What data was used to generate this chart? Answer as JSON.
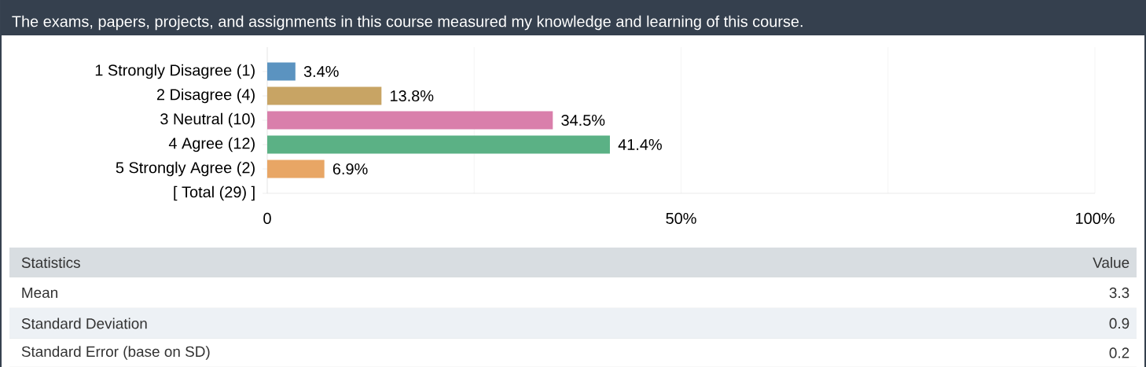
{
  "chart_data": {
    "type": "bar",
    "orientation": "horizontal",
    "title": "The exams, papers, projects, and assignments in this course measured my knowledge and learning of this course.",
    "categories": [
      "1 Strongly Disagree (1)",
      "2 Disagree (4)",
      "3 Neutral (10)",
      "4 Agree (12)",
      "5 Strongly Agree (2)",
      "[ Total (29) ]"
    ],
    "values": [
      3.4,
      13.8,
      34.5,
      41.4,
      6.9,
      null
    ],
    "colors": [
      "#5b93c0",
      "#c8a464",
      "#d97fab",
      "#5bb185",
      "#e8a665",
      null
    ],
    "value_labels": [
      "3.4%",
      "13.8%",
      "34.5%",
      "41.4%",
      "6.9%",
      null
    ],
    "xlim": [
      0,
      100
    ],
    "xticks": [
      {
        "value": 0,
        "label": "0"
      },
      {
        "value": 25,
        "label": null
      },
      {
        "value": 50,
        "label": "50%"
      },
      {
        "value": 75,
        "label": null
      },
      {
        "value": 100,
        "label": "100%"
      }
    ],
    "grid": "x",
    "annotations": [
      "Statistics",
      "Value",
      "Mean",
      "3.3",
      "Standard Deviation",
      "0.9",
      "Standard Error (base on SD)",
      "0.2"
    ]
  }
}
